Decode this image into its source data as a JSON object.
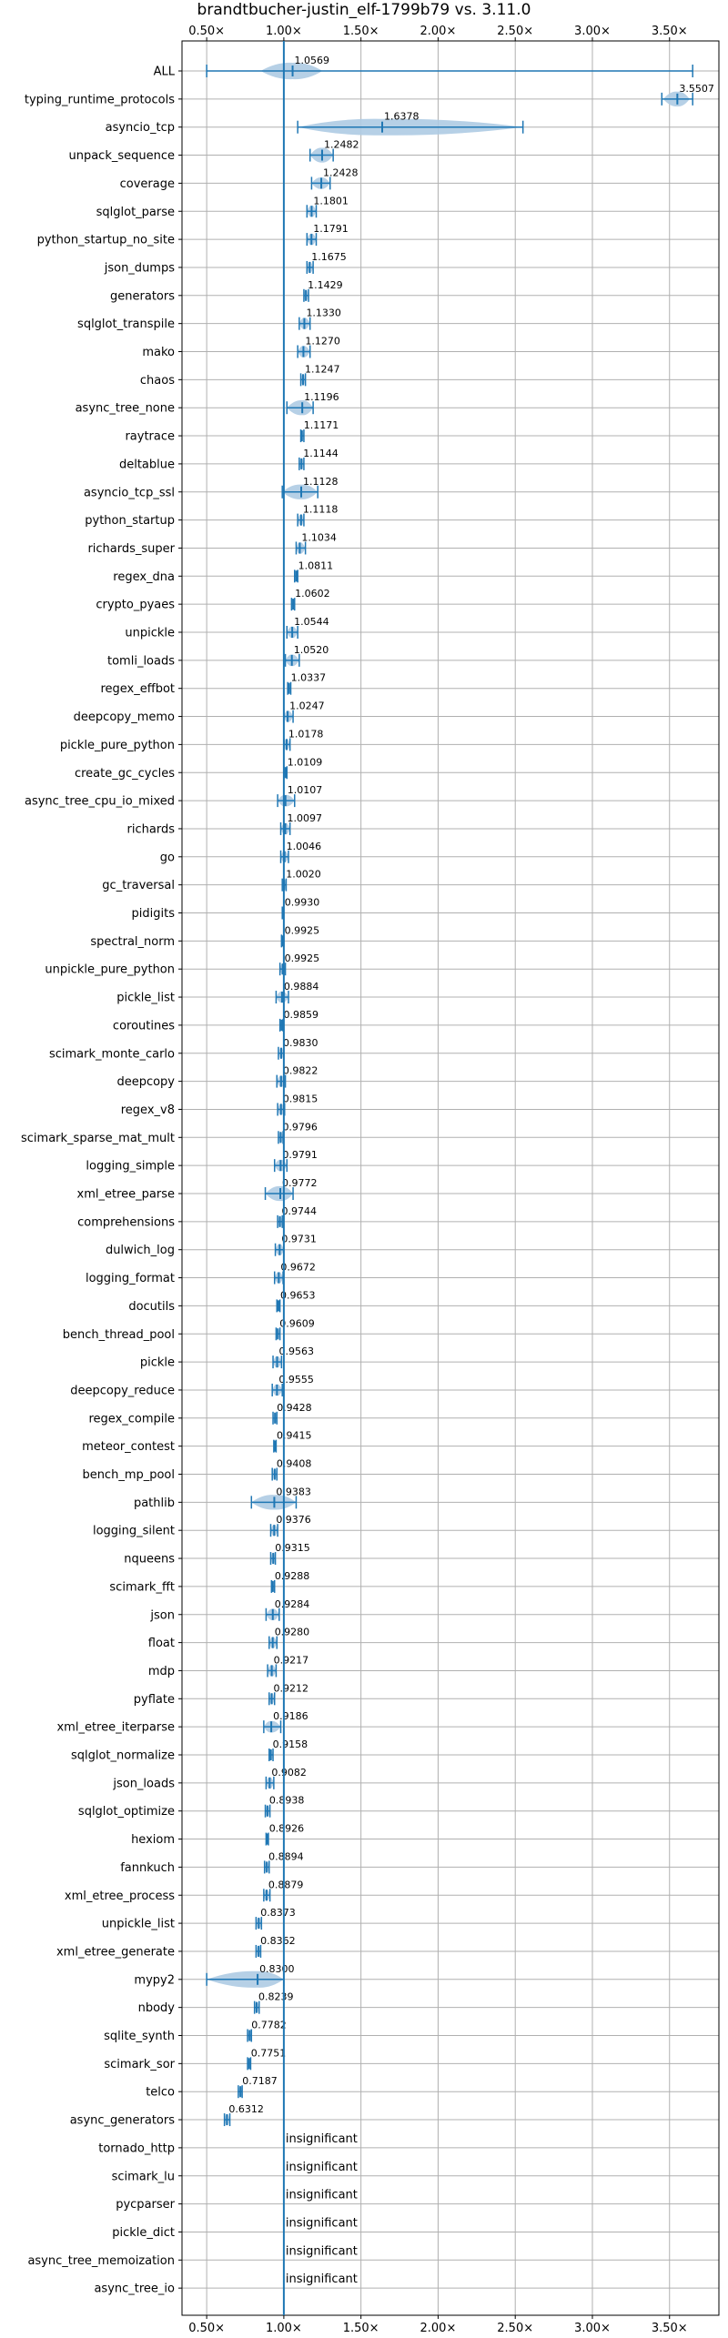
{
  "chart_data": {
    "type": "violin",
    "title": "brandtbucher-justin_elf-1799b79 vs. 3.11.0",
    "xlabel": "",
    "ylabel": "",
    "xlim": [
      0.34,
      3.82
    ],
    "xticks": [
      0.5,
      1.0,
      1.5,
      2.0,
      2.5,
      3.0,
      3.5
    ],
    "xtick_labels": [
      "0.50×",
      "1.00×",
      "1.50×",
      "2.00×",
      "2.50×",
      "3.00×",
      "3.50×"
    ],
    "grid": true,
    "reference_line": 1.0,
    "colors": {
      "violin": "#aecbe3",
      "marker": "#1f77b4",
      "grid": "#b0b0b0",
      "axis": "#000000"
    },
    "rows": [
      {
        "name": "ALL",
        "value": 1.0569,
        "label": "1.0569",
        "min": 0.5,
        "max": 3.65,
        "ext": [
          0.85,
          1.25
        ]
      },
      {
        "name": "typing_runtime_protocols",
        "value": 3.5507,
        "label": "3.5507",
        "min": 3.45,
        "max": 3.65,
        "ext": [
          3.46,
          3.63
        ]
      },
      {
        "name": "asyncio_tcp",
        "value": 1.6378,
        "label": "1.6378",
        "min": 1.09,
        "max": 2.55,
        "ext": [
          1.09,
          2.55
        ]
      },
      {
        "name": "unpack_sequence",
        "value": 1.2482,
        "label": "1.2482",
        "min": 1.17,
        "max": 1.32,
        "ext": [
          1.17,
          1.32
        ]
      },
      {
        "name": "coverage",
        "value": 1.2428,
        "label": "1.2428",
        "min": 1.18,
        "max": 1.3,
        "ext": [
          1.18,
          1.3
        ]
      },
      {
        "name": "sqlglot_parse",
        "value": 1.1801,
        "label": "1.1801",
        "min": 1.15,
        "max": 1.21,
        "ext": [
          1.15,
          1.21
        ]
      },
      {
        "name": "python_startup_no_site",
        "value": 1.1791,
        "label": "1.1791",
        "min": 1.15,
        "max": 1.21,
        "ext": [
          1.15,
          1.21
        ]
      },
      {
        "name": "json_dumps",
        "value": 1.1675,
        "label": "1.1675",
        "min": 1.15,
        "max": 1.19,
        "ext": [
          1.15,
          1.19
        ]
      },
      {
        "name": "generators",
        "value": 1.1429,
        "label": "1.1429",
        "min": 1.13,
        "max": 1.16,
        "ext": [
          1.13,
          1.16
        ]
      },
      {
        "name": "sqlglot_transpile",
        "value": 1.133,
        "label": "1.1330",
        "min": 1.1,
        "max": 1.17,
        "ext": [
          1.1,
          1.17
        ]
      },
      {
        "name": "mako",
        "value": 1.127,
        "label": "1.1270",
        "min": 1.09,
        "max": 1.17,
        "ext": [
          1.09,
          1.17
        ]
      },
      {
        "name": "chaos",
        "value": 1.1247,
        "label": "1.1247",
        "min": 1.11,
        "max": 1.14,
        "ext": [
          1.11,
          1.14
        ]
      },
      {
        "name": "async_tree_none",
        "value": 1.1196,
        "label": "1.1196",
        "min": 1.02,
        "max": 1.19,
        "ext": [
          1.02,
          1.19
        ]
      },
      {
        "name": "raytrace",
        "value": 1.1171,
        "label": "1.1171",
        "min": 1.11,
        "max": 1.13,
        "ext": [
          1.11,
          1.13
        ]
      },
      {
        "name": "deltablue",
        "value": 1.1144,
        "label": "1.1144",
        "min": 1.1,
        "max": 1.13,
        "ext": [
          1.1,
          1.13
        ]
      },
      {
        "name": "asyncio_tcp_ssl",
        "value": 1.1128,
        "label": "1.1128",
        "min": 0.99,
        "max": 1.22,
        "ext": [
          0.99,
          1.22
        ]
      },
      {
        "name": "python_startup",
        "value": 1.1118,
        "label": "1.1118",
        "min": 1.09,
        "max": 1.13,
        "ext": [
          1.09,
          1.13
        ]
      },
      {
        "name": "richards_super",
        "value": 1.1034,
        "label": "1.1034",
        "min": 1.08,
        "max": 1.14,
        "ext": [
          1.08,
          1.14
        ]
      },
      {
        "name": "regex_dna",
        "value": 1.0811,
        "label": "1.0811",
        "min": 1.07,
        "max": 1.09,
        "ext": [
          1.07,
          1.09
        ]
      },
      {
        "name": "crypto_pyaes",
        "value": 1.0602,
        "label": "1.0602",
        "min": 1.05,
        "max": 1.07,
        "ext": [
          1.05,
          1.07
        ]
      },
      {
        "name": "unpickle",
        "value": 1.0544,
        "label": "1.0544",
        "min": 1.02,
        "max": 1.09,
        "ext": [
          1.02,
          1.09
        ]
      },
      {
        "name": "tomli_loads",
        "value": 1.052,
        "label": "1.0520",
        "min": 1.01,
        "max": 1.1,
        "ext": [
          1.01,
          1.1
        ]
      },
      {
        "name": "regex_effbot",
        "value": 1.0337,
        "label": "1.0337",
        "min": 1.025,
        "max": 1.045,
        "ext": [
          1.025,
          1.045
        ]
      },
      {
        "name": "deepcopy_memo",
        "value": 1.0247,
        "label": "1.0247",
        "min": 1.0,
        "max": 1.06,
        "ext": [
          1.0,
          1.06
        ]
      },
      {
        "name": "pickle_pure_python",
        "value": 1.0178,
        "label": "1.0178",
        "min": 1.0,
        "max": 1.04,
        "ext": [
          1.0,
          1.04
        ]
      },
      {
        "name": "create_gc_cycles",
        "value": 1.0109,
        "label": "1.0109",
        "min": 1.0,
        "max": 1.02,
        "ext": [
          1.0,
          1.02
        ]
      },
      {
        "name": "async_tree_cpu_io_mixed",
        "value": 1.0107,
        "label": "1.0107",
        "min": 0.96,
        "max": 1.07,
        "ext": [
          0.96,
          1.07
        ]
      },
      {
        "name": "richards",
        "value": 1.0097,
        "label": "1.0097",
        "min": 0.98,
        "max": 1.04,
        "ext": [
          0.98,
          1.04
        ]
      },
      {
        "name": "go",
        "value": 1.0046,
        "label": "1.0046",
        "min": 0.98,
        "max": 1.03,
        "ext": [
          0.98,
          1.03
        ]
      },
      {
        "name": "gc_traversal",
        "value": 1.002,
        "label": "1.0020",
        "min": 0.99,
        "max": 1.015,
        "ext": [
          0.99,
          1.015
        ]
      },
      {
        "name": "pidigits",
        "value": 0.993,
        "label": "0.9930",
        "min": 0.99,
        "max": 0.997,
        "ext": [
          0.99,
          0.997
        ]
      },
      {
        "name": "spectral_norm",
        "value": 0.9925,
        "label": "0.9925",
        "min": 0.985,
        "max": 1.0,
        "ext": [
          0.985,
          1.0
        ]
      },
      {
        "name": "unpickle_pure_python",
        "value": 0.9925,
        "label": "0.9925",
        "min": 0.975,
        "max": 1.01,
        "ext": [
          0.975,
          1.01
        ]
      },
      {
        "name": "pickle_list",
        "value": 0.9884,
        "label": "0.9884",
        "min": 0.95,
        "max": 1.03,
        "ext": [
          0.95,
          1.03
        ]
      },
      {
        "name": "coroutines",
        "value": 0.9859,
        "label": "0.9859",
        "min": 0.975,
        "max": 0.995,
        "ext": [
          0.975,
          0.995
        ]
      },
      {
        "name": "scimark_monte_carlo",
        "value": 0.983,
        "label": "0.9830",
        "min": 0.965,
        "max": 1.0,
        "ext": [
          0.965,
          1.0
        ]
      },
      {
        "name": "deepcopy",
        "value": 0.9822,
        "label": "0.9822",
        "min": 0.955,
        "max": 1.01,
        "ext": [
          0.955,
          1.01
        ]
      },
      {
        "name": "regex_v8",
        "value": 0.9815,
        "label": "0.9815",
        "min": 0.96,
        "max": 1.005,
        "ext": [
          0.96,
          1.005
        ]
      },
      {
        "name": "scimark_sparse_mat_mult",
        "value": 0.9796,
        "label": "0.9796",
        "min": 0.965,
        "max": 0.995,
        "ext": [
          0.965,
          0.995
        ]
      },
      {
        "name": "logging_simple",
        "value": 0.9791,
        "label": "0.9791",
        "min": 0.94,
        "max": 1.02,
        "ext": [
          0.94,
          1.02
        ]
      },
      {
        "name": "xml_etree_parse",
        "value": 0.9772,
        "label": "0.9772",
        "min": 0.88,
        "max": 1.06,
        "ext": [
          0.88,
          1.06
        ]
      },
      {
        "name": "comprehensions",
        "value": 0.9744,
        "label": "0.9744",
        "min": 0.96,
        "max": 0.99,
        "ext": [
          0.96,
          0.99
        ]
      },
      {
        "name": "dulwich_log",
        "value": 0.9731,
        "label": "0.9731",
        "min": 0.945,
        "max": 1.0,
        "ext": [
          0.945,
          1.0
        ]
      },
      {
        "name": "logging_format",
        "value": 0.9672,
        "label": "0.9672",
        "min": 0.94,
        "max": 0.995,
        "ext": [
          0.94,
          0.995
        ]
      },
      {
        "name": "docutils",
        "value": 0.9653,
        "label": "0.9653",
        "min": 0.955,
        "max": 0.975,
        "ext": [
          0.955,
          0.975
        ]
      },
      {
        "name": "bench_thread_pool",
        "value": 0.9609,
        "label": "0.9609",
        "min": 0.95,
        "max": 0.975,
        "ext": [
          0.95,
          0.975
        ]
      },
      {
        "name": "pickle",
        "value": 0.9563,
        "label": "0.9563",
        "min": 0.93,
        "max": 0.985,
        "ext": [
          0.93,
          0.985
        ]
      },
      {
        "name": "deepcopy_reduce",
        "value": 0.9555,
        "label": "0.9555",
        "min": 0.925,
        "max": 0.99,
        "ext": [
          0.925,
          0.99
        ]
      },
      {
        "name": "regex_compile",
        "value": 0.9428,
        "label": "0.9428",
        "min": 0.93,
        "max": 0.955,
        "ext": [
          0.93,
          0.955
        ]
      },
      {
        "name": "meteor_contest",
        "value": 0.9415,
        "label": "0.9415",
        "min": 0.935,
        "max": 0.95,
        "ext": [
          0.935,
          0.95
        ]
      },
      {
        "name": "bench_mp_pool",
        "value": 0.9408,
        "label": "0.9408",
        "min": 0.925,
        "max": 0.955,
        "ext": [
          0.925,
          0.955
        ]
      },
      {
        "name": "pathlib",
        "value": 0.9383,
        "label": "0.9383",
        "min": 0.79,
        "max": 1.08,
        "ext": [
          0.79,
          1.08
        ]
      },
      {
        "name": "logging_silent",
        "value": 0.9376,
        "label": "0.9376",
        "min": 0.915,
        "max": 0.96,
        "ext": [
          0.915,
          0.96
        ]
      },
      {
        "name": "nqueens",
        "value": 0.9315,
        "label": "0.9315",
        "min": 0.915,
        "max": 0.945,
        "ext": [
          0.915,
          0.945
        ]
      },
      {
        "name": "scimark_fft",
        "value": 0.9288,
        "label": "0.9288",
        "min": 0.92,
        "max": 0.94,
        "ext": [
          0.92,
          0.94
        ]
      },
      {
        "name": "json",
        "value": 0.9284,
        "label": "0.9284",
        "min": 0.885,
        "max": 0.97,
        "ext": [
          0.885,
          0.97
        ]
      },
      {
        "name": "float",
        "value": 0.928,
        "label": "0.9280",
        "min": 0.905,
        "max": 0.955,
        "ext": [
          0.905,
          0.955
        ]
      },
      {
        "name": "mdp",
        "value": 0.9217,
        "label": "0.9217",
        "min": 0.895,
        "max": 0.95,
        "ext": [
          0.895,
          0.95
        ]
      },
      {
        "name": "pyflate",
        "value": 0.9212,
        "label": "0.9212",
        "min": 0.905,
        "max": 0.94,
        "ext": [
          0.905,
          0.94
        ]
      },
      {
        "name": "xml_etree_iterparse",
        "value": 0.9186,
        "label": "0.9186",
        "min": 0.87,
        "max": 0.98,
        "ext": [
          0.87,
          0.98
        ]
      },
      {
        "name": "sqlglot_normalize",
        "value": 0.9158,
        "label": "0.9158",
        "min": 0.905,
        "max": 0.93,
        "ext": [
          0.905,
          0.93
        ]
      },
      {
        "name": "json_loads",
        "value": 0.9082,
        "label": "0.9082",
        "min": 0.885,
        "max": 0.935,
        "ext": [
          0.885,
          0.935
        ]
      },
      {
        "name": "sqlglot_optimize",
        "value": 0.8938,
        "label": "0.8938",
        "min": 0.88,
        "max": 0.91,
        "ext": [
          0.88,
          0.91
        ]
      },
      {
        "name": "hexiom",
        "value": 0.8926,
        "label": "0.8926",
        "min": 0.885,
        "max": 0.9,
        "ext": [
          0.885,
          0.9
        ]
      },
      {
        "name": "fannkuch",
        "value": 0.8894,
        "label": "0.8894",
        "min": 0.875,
        "max": 0.905,
        "ext": [
          0.875,
          0.905
        ]
      },
      {
        "name": "xml_etree_process",
        "value": 0.8879,
        "label": "0.8879",
        "min": 0.87,
        "max": 0.91,
        "ext": [
          0.87,
          0.91
        ]
      },
      {
        "name": "unpickle_list",
        "value": 0.8373,
        "label": "0.8373",
        "min": 0.82,
        "max": 0.855,
        "ext": [
          0.82,
          0.855
        ]
      },
      {
        "name": "xml_etree_generate",
        "value": 0.8362,
        "label": "0.8362",
        "min": 0.82,
        "max": 0.85,
        "ext": [
          0.82,
          0.85
        ]
      },
      {
        "name": "mypy2",
        "value": 0.83,
        "label": "0.8300",
        "min": 0.5,
        "max": 1.0,
        "ext": [
          0.5,
          1.0
        ]
      },
      {
        "name": "nbody",
        "value": 0.8239,
        "label": "0.8239",
        "min": 0.81,
        "max": 0.84,
        "ext": [
          0.81,
          0.84
        ]
      },
      {
        "name": "sqlite_synth",
        "value": 0.7782,
        "label": "0.7782",
        "min": 0.765,
        "max": 0.79,
        "ext": [
          0.765,
          0.79
        ]
      },
      {
        "name": "scimark_sor",
        "value": 0.7751,
        "label": "0.7751",
        "min": 0.765,
        "max": 0.785,
        "ext": [
          0.765,
          0.785
        ]
      },
      {
        "name": "telco",
        "value": 0.7187,
        "label": "0.7187",
        "min": 0.705,
        "max": 0.73,
        "ext": [
          0.705,
          0.73
        ]
      },
      {
        "name": "async_generators",
        "value": 0.6312,
        "label": "0.6312",
        "min": 0.615,
        "max": 0.65,
        "ext": [
          0.615,
          0.65
        ]
      },
      {
        "name": "tornado_http",
        "value": null,
        "label": "insignificant"
      },
      {
        "name": "scimark_lu",
        "value": null,
        "label": "insignificant"
      },
      {
        "name": "pycparser",
        "value": null,
        "label": "insignificant"
      },
      {
        "name": "pickle_dict",
        "value": null,
        "label": "insignificant"
      },
      {
        "name": "async_tree_memoization",
        "value": null,
        "label": "insignificant"
      },
      {
        "name": "async_tree_io",
        "value": null,
        "label": "insignificant"
      }
    ]
  }
}
